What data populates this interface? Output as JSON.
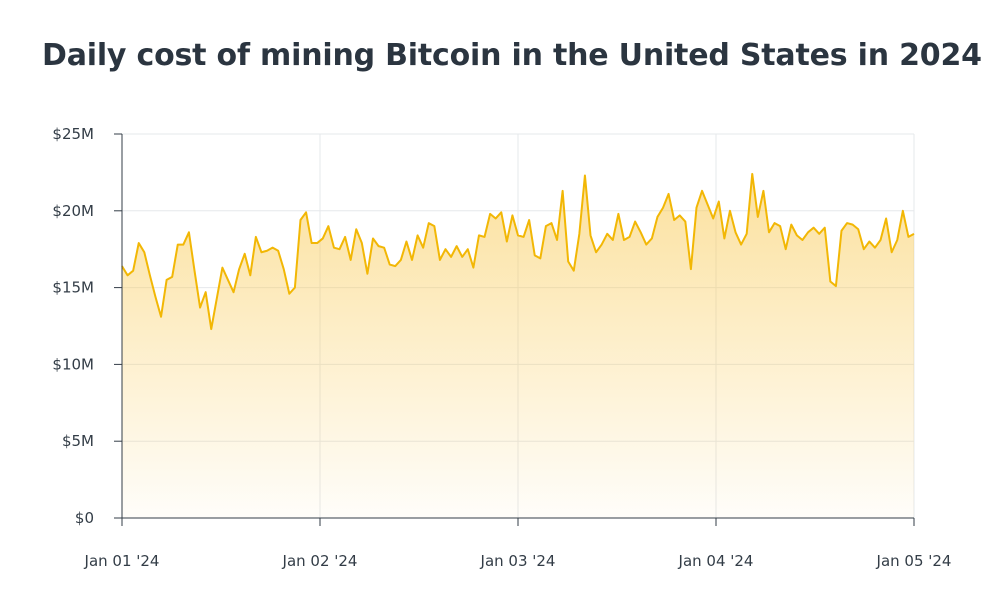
{
  "page": {
    "title": "Daily cost of mining Bitcoin in the United States in 2024"
  },
  "colors": {
    "line": "#f2b705",
    "fill_top": "#f9c84e",
    "grid": "#e6e8eb",
    "axis": "#333d47",
    "title": "#2b3540"
  },
  "chart_data": {
    "type": "area",
    "title": "Daily cost of mining Bitcoin in the United States in 2024",
    "xlabel": "",
    "ylabel": "",
    "x_ticks": [
      "Jan 01 '24",
      "Jan 02 '24",
      "Jan 03 '24",
      "Jan 04 '24",
      "Jan 05 '24"
    ],
    "y_ticks": [
      "$0",
      "$5M",
      "$10M",
      "$15M",
      "$20M",
      "$25M"
    ],
    "y_tick_values": [
      0,
      5,
      10,
      15,
      20,
      25
    ],
    "y_unit": "millions USD",
    "xlim": [
      "Jan 01 '24",
      "Jan 05 '24"
    ],
    "ylim": [
      0,
      25
    ],
    "grid": true,
    "legend": "none",
    "series": [
      {
        "values": [
          16.4,
          15.8,
          16.1,
          17.9,
          17.3,
          15.8,
          14.4,
          13.1,
          15.5,
          15.7,
          17.8,
          17.8,
          18.6,
          16.1,
          13.7,
          14.7,
          12.3,
          14.3,
          16.3,
          15.5,
          14.7,
          16.2,
          17.2,
          15.8,
          18.3,
          17.3,
          17.4,
          17.6,
          17.4,
          16.2,
          14.6,
          15.0,
          19.4,
          19.9,
          17.9,
          17.9,
          18.2,
          19.0,
          17.6,
          17.5,
          18.3,
          16.8,
          18.8,
          17.9,
          15.9,
          18.2,
          17.7,
          17.6,
          16.5,
          16.4,
          16.8,
          18.0,
          16.8,
          18.4,
          17.6,
          19.2,
          19.0,
          16.8,
          17.5,
          17.0,
          17.7,
          17.0,
          17.5,
          16.3,
          18.4,
          18.3,
          19.8,
          19.5,
          19.9,
          18.0,
          19.7,
          18.4,
          18.3,
          19.4,
          17.1,
          16.9,
          19.0,
          19.2,
          18.1,
          21.3,
          16.7,
          16.1,
          18.5,
          22.3,
          18.4,
          17.3,
          17.8,
          18.5,
          18.1,
          19.8,
          18.1,
          18.3,
          19.3,
          18.6,
          17.8,
          18.2,
          19.6,
          20.2,
          21.1,
          19.4,
          19.7,
          19.3,
          16.2,
          20.2,
          21.3,
          20.4,
          19.5,
          20.6,
          18.2,
          20.0,
          18.6,
          17.8,
          18.5,
          22.4,
          19.6,
          21.3,
          18.6,
          19.2,
          19.0,
          17.5,
          19.1,
          18.4,
          18.1,
          18.6,
          18.9,
          18.5,
          18.9,
          15.4,
          15.1,
          18.7,
          19.2,
          19.1,
          18.8,
          17.5,
          18.0,
          17.6,
          18.1,
          19.5,
          17.3,
          18.1,
          20.0,
          18.3,
          18.5
        ]
      }
    ]
  }
}
